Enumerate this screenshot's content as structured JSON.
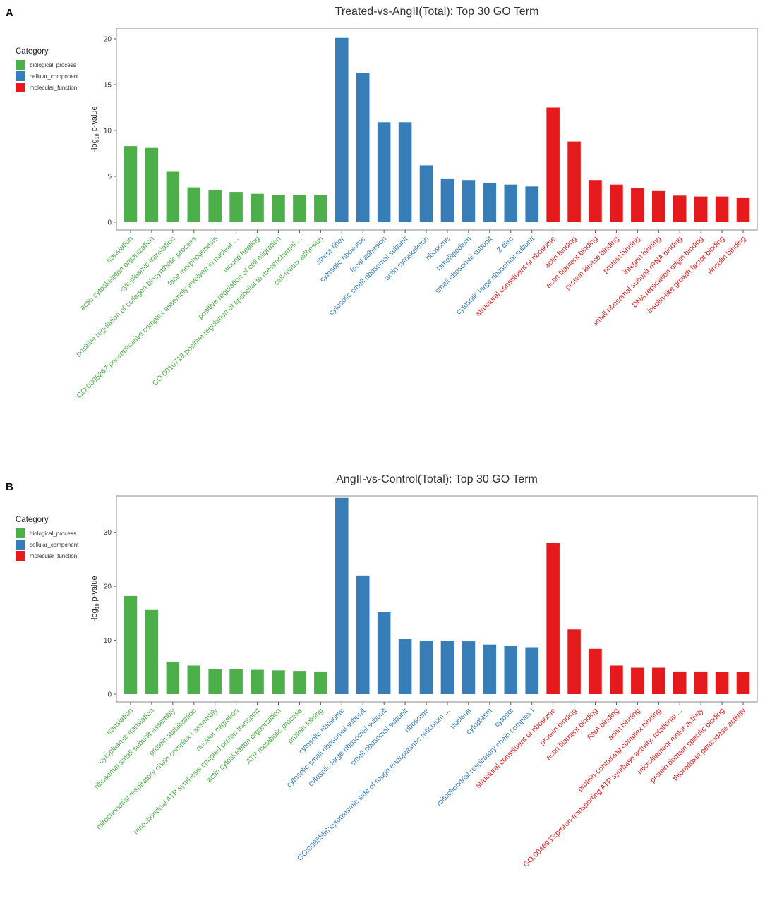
{
  "colors": {
    "biological_process": "#4daf4a",
    "cellular_component": "#377eb8",
    "molecular_function": "#e41a1c",
    "axis": "#555555",
    "panel_border": "#888888"
  },
  "legend": {
    "title": "Category",
    "entries": [
      {
        "key": "biological_process",
        "label": "biological_process"
      },
      {
        "key": "cellular_component",
        "label": "cellular_component"
      },
      {
        "key": "molecular_function",
        "label": "molecular_function"
      }
    ]
  },
  "chart_data": [
    {
      "type": "bar",
      "panel_label": "A",
      "title": "Treated-vs-AngII(Total): Top 30 GO Term",
      "ylabel_prefix": "-log",
      "ylabel_sub": "10",
      "ylabel_suffix": " p-value",
      "ylim": [
        0,
        21
      ],
      "yticks": [
        0,
        5,
        10,
        15,
        20
      ],
      "categories": [
        {
          "term": "translation",
          "value": 8.3,
          "category": "biological_process"
        },
        {
          "term": "actin cytoskeleton organization",
          "value": 8.1,
          "category": "biological_process"
        },
        {
          "term": "cytoplasmic translation",
          "value": 5.5,
          "category": "biological_process"
        },
        {
          "term": "positive regulation of collagen biosynthetic process",
          "value": 3.8,
          "category": "biological_process"
        },
        {
          "term": "face morphogenesis",
          "value": 3.5,
          "category": "biological_process"
        },
        {
          "term": "GO:0006267:pre-replicative complex assembly involved in nuclear ...",
          "value": 3.3,
          "category": "biological_process"
        },
        {
          "term": "wound healing",
          "value": 3.1,
          "category": "biological_process"
        },
        {
          "term": "positive regulation of cell migration",
          "value": 3.0,
          "category": "biological_process"
        },
        {
          "term": "GO:0010718:positive regulation of epithelial to mesenchymal ...",
          "value": 3.0,
          "category": "biological_process"
        },
        {
          "term": "cell-matrix adhesion",
          "value": 3.0,
          "category": "biological_process"
        },
        {
          "term": "stress fiber",
          "value": 20.1,
          "category": "cellular_component"
        },
        {
          "term": "cytosolic ribosome",
          "value": 16.3,
          "category": "cellular_component"
        },
        {
          "term": "focal adhesion",
          "value": 10.9,
          "category": "cellular_component"
        },
        {
          "term": "cytosolic small ribosomal subunit",
          "value": 10.9,
          "category": "cellular_component"
        },
        {
          "term": "actin cytoskeleton",
          "value": 6.2,
          "category": "cellular_component"
        },
        {
          "term": "ribosome",
          "value": 4.7,
          "category": "cellular_component"
        },
        {
          "term": "lamellipodium",
          "value": 4.6,
          "category": "cellular_component"
        },
        {
          "term": "small ribosomal subunit",
          "value": 4.3,
          "category": "cellular_component"
        },
        {
          "term": "Z disc",
          "value": 4.1,
          "category": "cellular_component"
        },
        {
          "term": "cytosolic large ribosomal subunit",
          "value": 3.9,
          "category": "cellular_component"
        },
        {
          "term": "structural constituent of ribosome",
          "value": 12.5,
          "category": "molecular_function"
        },
        {
          "term": "actin binding",
          "value": 8.8,
          "category": "molecular_function"
        },
        {
          "term": "actin filament binding",
          "value": 4.6,
          "category": "molecular_function"
        },
        {
          "term": "protein kinase binding",
          "value": 4.1,
          "category": "molecular_function"
        },
        {
          "term": "protein binding",
          "value": 3.7,
          "category": "molecular_function"
        },
        {
          "term": "integrin binding",
          "value": 3.4,
          "category": "molecular_function"
        },
        {
          "term": "small ribosomal subunit rRNA binding",
          "value": 2.9,
          "category": "molecular_function"
        },
        {
          "term": "DNA replication origin binding",
          "value": 2.8,
          "category": "molecular_function"
        },
        {
          "term": "insulin-like growth factor binding",
          "value": 2.8,
          "category": "molecular_function"
        },
        {
          "term": "vinculin binding",
          "value": 2.7,
          "category": "molecular_function"
        }
      ]
    },
    {
      "type": "bar",
      "panel_label": "B",
      "title": "AngII-vs-Control(Total): Top 30 GO Term",
      "ylabel_prefix": "-log",
      "ylabel_sub": "10",
      "ylabel_suffix": " p-value",
      "ylim": [
        0,
        36.5
      ],
      "yticks": [
        0,
        10,
        20,
        30
      ],
      "categories": [
        {
          "term": "translation",
          "value": 18.2,
          "category": "biological_process"
        },
        {
          "term": "cytoplasmic translation",
          "value": 15.6,
          "category": "biological_process"
        },
        {
          "term": "ribosomal small subunit assembly",
          "value": 6.0,
          "category": "biological_process"
        },
        {
          "term": "protein stabilization",
          "value": 5.3,
          "category": "biological_process"
        },
        {
          "term": "mitochondrial respiratory chain complex I assembly",
          "value": 4.7,
          "category": "biological_process"
        },
        {
          "term": "nuclear migration",
          "value": 4.6,
          "category": "biological_process"
        },
        {
          "term": "mitochondrial ATP synthesis coupled proton transport",
          "value": 4.5,
          "category": "biological_process"
        },
        {
          "term": "actin cytoskeleton organization",
          "value": 4.4,
          "category": "biological_process"
        },
        {
          "term": "ATP metabolic process",
          "value": 4.3,
          "category": "biological_process"
        },
        {
          "term": "protein folding",
          "value": 4.2,
          "category": "biological_process"
        },
        {
          "term": "cytosolic ribosome",
          "value": 36.4,
          "category": "cellular_component"
        },
        {
          "term": "cytosolic small ribosomal subunit",
          "value": 22.0,
          "category": "cellular_component"
        },
        {
          "term": "cytosolic large ribosomal subunit",
          "value": 15.2,
          "category": "cellular_component"
        },
        {
          "term": "small ribosomal subunit",
          "value": 10.2,
          "category": "cellular_component"
        },
        {
          "term": "ribosome",
          "value": 9.9,
          "category": "cellular_component"
        },
        {
          "term": "GO:0098556:cytoplasmic side of rough endoplasmic reticulum ...",
          "value": 9.9,
          "category": "cellular_component"
        },
        {
          "term": "nucleus",
          "value": 9.8,
          "category": "cellular_component"
        },
        {
          "term": "cytoplasm",
          "value": 9.2,
          "category": "cellular_component"
        },
        {
          "term": "cytosol",
          "value": 8.9,
          "category": "cellular_component"
        },
        {
          "term": "mitochondrial respiratory chain complex I",
          "value": 8.7,
          "category": "cellular_component"
        },
        {
          "term": "structural constituent of ribosome",
          "value": 28.0,
          "category": "molecular_function"
        },
        {
          "term": "protein binding",
          "value": 12.0,
          "category": "molecular_function"
        },
        {
          "term": "actin filament binding",
          "value": 8.4,
          "category": "molecular_function"
        },
        {
          "term": "RNA binding",
          "value": 5.3,
          "category": "molecular_function"
        },
        {
          "term": "actin binding",
          "value": 4.9,
          "category": "molecular_function"
        },
        {
          "term": "protein-containing complex binding",
          "value": 4.9,
          "category": "molecular_function"
        },
        {
          "term": "GO:0046933:proton-transporting ATP synthase activity, rotational ...",
          "value": 4.2,
          "category": "molecular_function"
        },
        {
          "term": "microfilament motor activity",
          "value": 4.2,
          "category": "molecular_function"
        },
        {
          "term": "protein domain specific binding",
          "value": 4.1,
          "category": "molecular_function"
        },
        {
          "term": "thioredoxin peroxidase activity",
          "value": 4.1,
          "category": "molecular_function"
        }
      ]
    }
  ]
}
